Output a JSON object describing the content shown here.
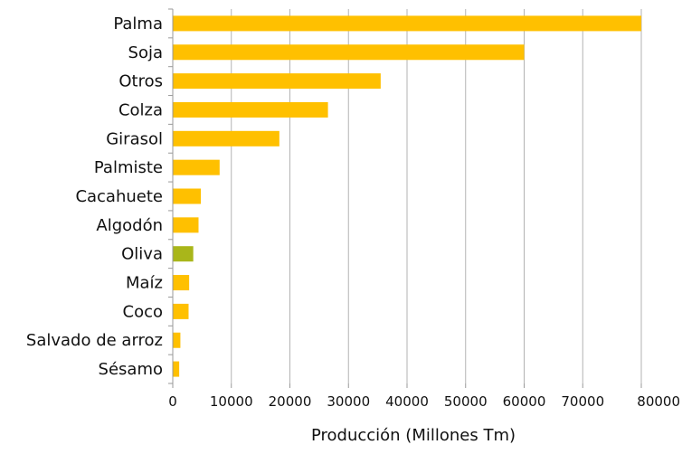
{
  "chart_data": {
    "type": "bar",
    "orientation": "horizontal",
    "categories": [
      "Palma",
      "Soja",
      "Otros",
      "Colza",
      "Girasol",
      "Palmiste",
      "Cacahuete",
      "Algodón",
      "Oliva",
      "Maíz",
      "Coco",
      "Salvado de arroz",
      "Sésamo"
    ],
    "values": [
      80000,
      60000,
      35500,
      26500,
      18200,
      8000,
      4800,
      4400,
      3500,
      2800,
      2700,
      1300,
      1100
    ],
    "bar_colors": [
      "#FFC000",
      "#FFC000",
      "#FFC000",
      "#FFC000",
      "#FFC000",
      "#FFC000",
      "#FFC000",
      "#FFC000",
      "#A9B61A",
      "#FFC000",
      "#FFC000",
      "#FFC000",
      "#FFC000"
    ],
    "xlabel": "Producción (Millones Tm)",
    "ylabel": "",
    "title": "",
    "xlim": [
      0,
      80000
    ],
    "xticks": [
      "0",
      "10000",
      "20000",
      "30000",
      "40000",
      "50000",
      "60000",
      "70000",
      "80000"
    ],
    "grid": "vertical"
  }
}
